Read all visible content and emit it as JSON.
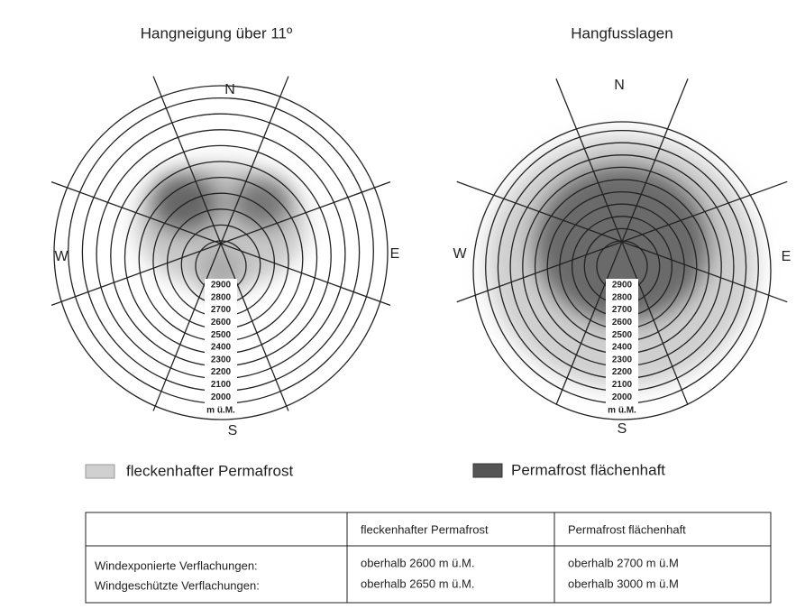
{
  "diagrams": [
    {
      "title": "Hangneigung über 11º",
      "compass": {
        "n": "N",
        "e": "E",
        "s": "S",
        "w": "W"
      },
      "elevations": [
        2900,
        2800,
        2700,
        2600,
        2500,
        2400,
        2300,
        2200,
        2100,
        2000
      ],
      "unit": "m ü.M."
    },
    {
      "title": "Hangfusslagen",
      "compass": {
        "n": "N",
        "e": "E",
        "s": "S",
        "w": "W"
      },
      "elevations": [
        2900,
        2800,
        2700,
        2600,
        2500,
        2400,
        2300,
        2200,
        2100,
        2000
      ],
      "unit": "m ü.M."
    }
  ],
  "legend": [
    "fleckenhafter Permafrost",
    "Permafrost flächenhaft"
  ],
  "table": {
    "header": [
      "fleckenhafter Permafrost",
      "Permafrost flächenhaft"
    ],
    "rows": [
      [
        "Windexponierte Verflachungen:",
        "oberhalb 2600 m ü.M.",
        "oberhalb 2700 m ü.M"
      ],
      [
        "Windgeschützte Verflachungen:",
        "oberhalb 2650 m ü.M.",
        "oberhalb 3000 m ü.M"
      ]
    ]
  }
}
